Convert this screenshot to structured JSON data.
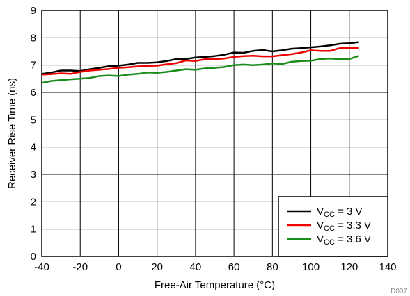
{
  "chart_data": {
    "type": "line",
    "xlabel": "Free-Air Temperature (°C)",
    "ylabel": "Receiver Rise Time (ns)",
    "xlim": [
      -40,
      140
    ],
    "ylim": [
      0,
      9
    ],
    "x_ticks": [
      "-40",
      "-20",
      "0",
      "20",
      "40",
      "60",
      "80",
      "100",
      "120",
      "140"
    ],
    "y_ticks": [
      "0",
      "1",
      "2",
      "3",
      "4",
      "5",
      "6",
      "7",
      "8",
      "9"
    ],
    "grid": true,
    "legend_position": "bottom-right",
    "footnote": "D007",
    "series": [
      {
        "label_main": "V",
        "label_sub": "CC",
        "label_rest": " = 3 V",
        "color": "#000000",
        "x": [
          -40,
          -35,
          -30,
          -25,
          -20,
          -15,
          -10,
          -5,
          0,
          5,
          10,
          15,
          20,
          25,
          30,
          35,
          40,
          45,
          50,
          55,
          60,
          65,
          70,
          75,
          80,
          85,
          90,
          95,
          100,
          105,
          110,
          115,
          120,
          125
        ],
        "y": [
          6.68,
          6.73,
          6.8,
          6.8,
          6.78,
          6.85,
          6.9,
          6.96,
          6.98,
          7.02,
          7.08,
          7.08,
          7.1,
          7.15,
          7.22,
          7.22,
          7.28,
          7.3,
          7.33,
          7.38,
          7.46,
          7.45,
          7.52,
          7.55,
          7.5,
          7.54,
          7.6,
          7.62,
          7.65,
          7.68,
          7.72,
          7.78,
          7.8,
          7.84
        ]
      },
      {
        "label_main": "V",
        "label_sub": "CC",
        "label_rest": " = 3.3 V",
        "color": "#ee0000",
        "x": [
          -40,
          -35,
          -30,
          -25,
          -20,
          -15,
          -10,
          -5,
          0,
          5,
          10,
          15,
          20,
          25,
          30,
          35,
          40,
          45,
          50,
          55,
          60,
          65,
          70,
          75,
          80,
          85,
          90,
          95,
          100,
          105,
          110,
          115,
          120,
          125
        ],
        "y": [
          6.65,
          6.67,
          6.7,
          6.68,
          6.75,
          6.8,
          6.83,
          6.86,
          6.9,
          6.92,
          6.95,
          6.97,
          6.98,
          7.03,
          7.07,
          7.17,
          7.15,
          7.22,
          7.22,
          7.24,
          7.3,
          7.33,
          7.34,
          7.32,
          7.32,
          7.36,
          7.4,
          7.46,
          7.54,
          7.52,
          7.52,
          7.62,
          7.62,
          7.62
        ]
      },
      {
        "label_main": "V",
        "label_sub": "CC",
        "label_rest": " = 3.6 V",
        "color": "#1a8c1a",
        "x": [
          -40,
          -35,
          -30,
          -25,
          -20,
          -15,
          -10,
          -5,
          0,
          5,
          10,
          15,
          20,
          25,
          30,
          35,
          40,
          45,
          50,
          55,
          60,
          65,
          70,
          75,
          80,
          85,
          90,
          95,
          100,
          105,
          110,
          115,
          120,
          125
        ],
        "y": [
          6.35,
          6.42,
          6.45,
          6.48,
          6.5,
          6.53,
          6.6,
          6.62,
          6.6,
          6.65,
          6.68,
          6.73,
          6.72,
          6.75,
          6.8,
          6.85,
          6.83,
          6.88,
          6.9,
          6.93,
          7.0,
          7.02,
          7.0,
          7.02,
          7.06,
          7.04,
          7.12,
          7.15,
          7.16,
          7.22,
          7.24,
          7.22,
          7.22,
          7.34
        ]
      }
    ]
  }
}
